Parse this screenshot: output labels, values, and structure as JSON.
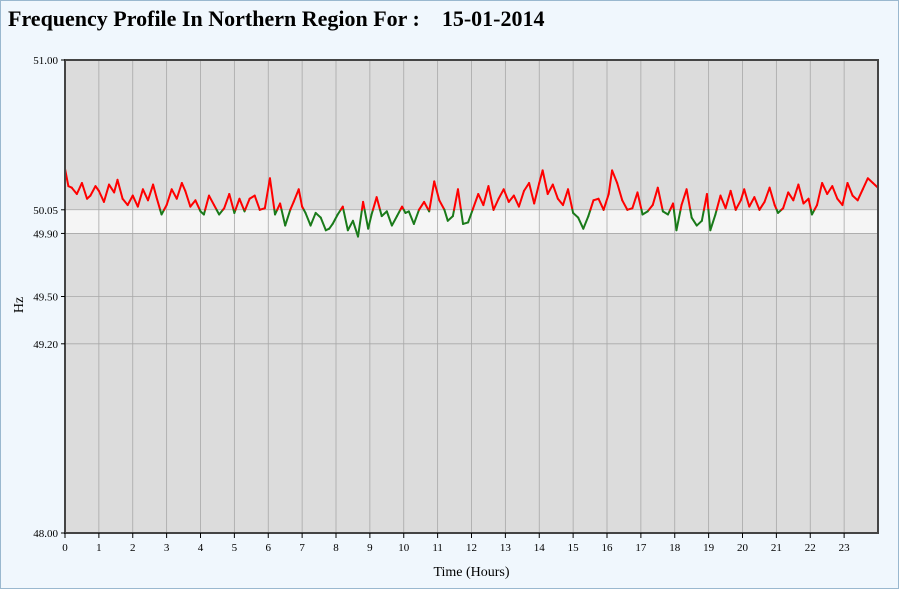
{
  "header": {
    "title": "Frequency Profile In Northern Region For :",
    "date": "15-01-2014"
  },
  "colors": {
    "plot_bg": "#dcdcdc",
    "band_bg": "#f5f5f5",
    "grid": "#a8a8a8",
    "above_band": "#ff0000",
    "within_band": "#1a7a1a",
    "frame": "#444444"
  },
  "chart_data": {
    "type": "line",
    "title": "Frequency Profile In Northern Region For : 15-01-2014",
    "xlabel": "Time (Hours)",
    "ylabel": "Hz",
    "xlim": [
      0,
      24
    ],
    "ylim": [
      48.0,
      51.0
    ],
    "x_ticks": [
      "0",
      "1",
      "2",
      "3",
      "4",
      "5",
      "6",
      "7",
      "8",
      "9",
      "10",
      "11",
      "12",
      "13",
      "14",
      "15",
      "16",
      "17",
      "18",
      "19",
      "20",
      "21",
      "22",
      "23"
    ],
    "y_ticks": [
      "51.00",
      "50.05",
      "49.90",
      "49.50",
      "49.20",
      "48.00"
    ],
    "y_tick_values": [
      51.0,
      50.05,
      49.9,
      49.5,
      49.2,
      48.0
    ],
    "band": [
      49.9,
      50.05
    ],
    "grid": true,
    "series": [
      {
        "color_rule": "red above 50.05 Hz, green at or below 50.05 Hz",
        "x": [
          0.0,
          0.1,
          0.2,
          0.35,
          0.5,
          0.65,
          0.75,
          0.9,
          1.0,
          1.15,
          1.3,
          1.45,
          1.55,
          1.7,
          1.85,
          2.0,
          2.15,
          2.3,
          2.45,
          2.6,
          2.7,
          2.85,
          3.0,
          3.15,
          3.3,
          3.45,
          3.55,
          3.7,
          3.85,
          4.0,
          4.1,
          4.25,
          4.4,
          4.55,
          4.7,
          4.85,
          5.0,
          5.15,
          5.3,
          5.45,
          5.6,
          5.75,
          5.9,
          6.05,
          6.2,
          6.35,
          6.5,
          6.65,
          6.75,
          6.9,
          7.0,
          7.1,
          7.25,
          7.4,
          7.55,
          7.7,
          7.8,
          7.9,
          8.05,
          8.2,
          8.35,
          8.5,
          8.65,
          8.8,
          8.95,
          9.05,
          9.2,
          9.35,
          9.5,
          9.65,
          9.8,
          9.95,
          10.05,
          10.15,
          10.3,
          10.45,
          10.6,
          10.75,
          10.9,
          11.05,
          11.2,
          11.3,
          11.45,
          11.6,
          11.75,
          11.9,
          12.05,
          12.2,
          12.35,
          12.5,
          12.65,
          12.8,
          12.95,
          13.1,
          13.25,
          13.4,
          13.55,
          13.7,
          13.85,
          14.0,
          14.1,
          14.25,
          14.4,
          14.55,
          14.7,
          14.85,
          15.0,
          15.15,
          15.3,
          15.45,
          15.6,
          15.75,
          15.9,
          16.05,
          16.15,
          16.3,
          16.45,
          16.6,
          16.75,
          16.9,
          17.05,
          17.2,
          17.35,
          17.5,
          17.65,
          17.8,
          17.95,
          18.05,
          18.2,
          18.35,
          18.5,
          18.65,
          18.8,
          18.95,
          19.05,
          19.2,
          19.35,
          19.5,
          19.65,
          19.8,
          19.95,
          20.05,
          20.2,
          20.35,
          20.5,
          20.65,
          20.8,
          20.95,
          21.05,
          21.2,
          21.35,
          21.5,
          21.65,
          21.8,
          21.95,
          22.05,
          22.2,
          22.35,
          22.5,
          22.65,
          22.8,
          22.95,
          23.1,
          23.25,
          23.4,
          23.55,
          23.7,
          23.85,
          24.0
        ],
        "y": [
          50.31,
          50.2,
          50.19,
          50.15,
          50.22,
          50.12,
          50.14,
          50.2,
          50.17,
          50.1,
          50.21,
          50.16,
          50.24,
          50.12,
          50.08,
          50.14,
          50.07,
          50.18,
          50.11,
          50.21,
          50.13,
          50.02,
          50.08,
          50.18,
          50.12,
          50.22,
          50.17,
          50.07,
          50.11,
          50.04,
          50.02,
          50.14,
          50.08,
          50.02,
          50.06,
          50.15,
          50.03,
          50.12,
          50.04,
          50.12,
          50.14,
          50.05,
          50.06,
          50.25,
          50.02,
          50.09,
          49.95,
          50.05,
          50.1,
          50.18,
          50.07,
          50.03,
          49.95,
          50.03,
          50.0,
          49.92,
          49.93,
          49.96,
          50.02,
          50.07,
          49.92,
          49.98,
          49.88,
          50.1,
          49.93,
          50.02,
          50.13,
          50.01,
          50.04,
          49.95,
          50.01,
          50.07,
          50.03,
          50.04,
          49.96,
          50.05,
          50.1,
          50.04,
          50.23,
          50.11,
          50.05,
          49.98,
          50.01,
          50.18,
          49.96,
          49.97,
          50.06,
          50.15,
          50.08,
          50.2,
          50.05,
          50.12,
          50.18,
          50.1,
          50.14,
          50.07,
          50.17,
          50.22,
          50.09,
          50.22,
          50.3,
          50.15,
          50.21,
          50.12,
          50.08,
          50.18,
          50.03,
          50.0,
          49.93,
          50.01,
          50.11,
          50.12,
          50.05,
          50.15,
          50.3,
          50.22,
          50.11,
          50.05,
          50.06,
          50.16,
          50.02,
          50.04,
          50.08,
          50.19,
          50.04,
          50.02,
          50.09,
          49.92,
          50.08,
          50.18,
          50.0,
          49.95,
          49.98,
          50.15,
          49.92,
          50.02,
          50.14,
          50.06,
          50.17,
          50.05,
          50.11,
          50.18,
          50.07,
          50.13,
          50.05,
          50.1,
          50.19,
          50.08,
          50.03,
          50.06,
          50.16,
          50.11,
          50.21,
          50.09,
          50.12,
          50.02,
          50.08,
          50.22,
          50.15,
          50.2,
          50.12,
          50.08,
          50.22,
          50.14,
          50.11,
          50.18,
          50.25,
          50.22,
          50.19
        ]
      }
    ]
  }
}
